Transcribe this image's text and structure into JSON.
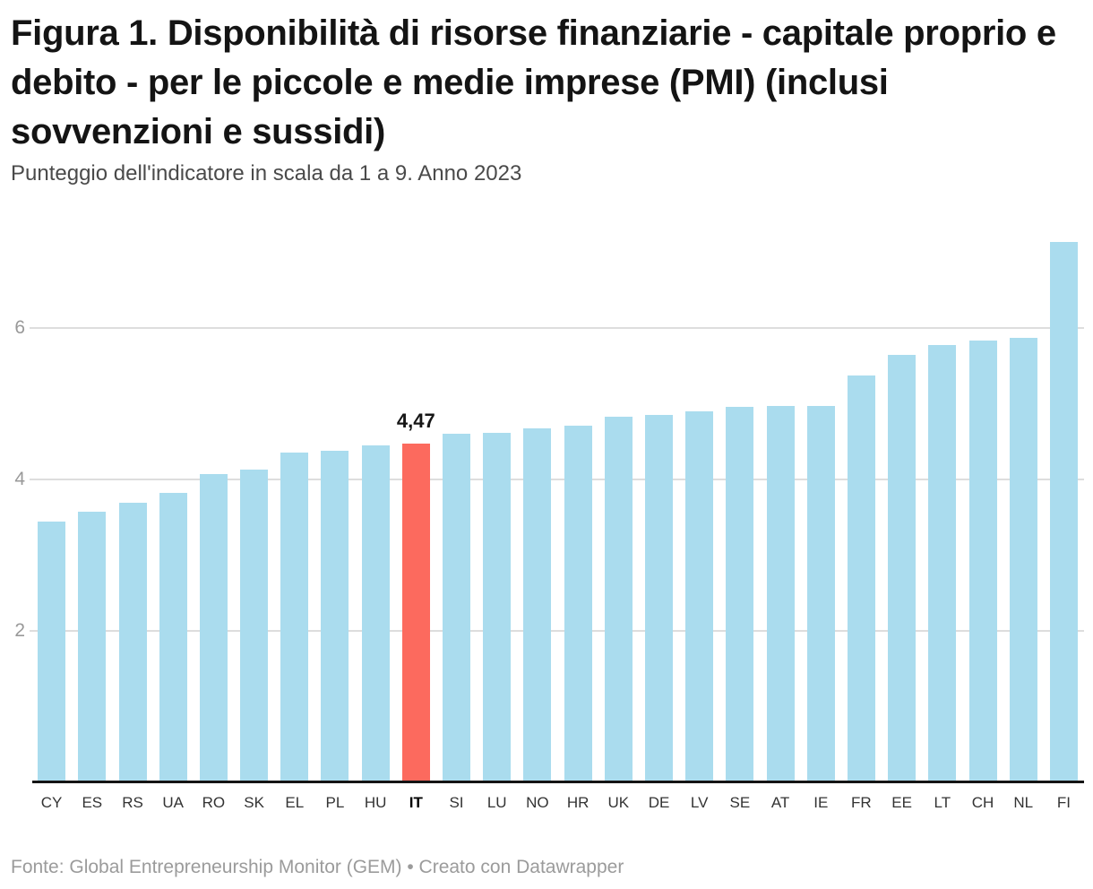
{
  "page": {
    "title": "Figura 1. Disponibilità di risorse finanziarie - capitale proprio e debito - per le piccole e medie imprese (PMI) (inclusi sovvenzioni e sussidi)",
    "subtitle": "Punteggio dell'indicatore in scala da 1 a 9. Anno 2023",
    "footer": "Fonte: Global Entrepreneurship Monitor (GEM) • Creato con Datawrapper"
  },
  "colors": {
    "bar": "#aadcee",
    "highlight_bar": "#fc6a5e",
    "grid": "#dddddd",
    "axis": "#141414",
    "y_tick_label": "#999999",
    "x_label": "#333333",
    "x_label_highlight": "#000000",
    "title": "#141414",
    "subtitle": "#4a4a4a",
    "footer": "#9b9b9b"
  },
  "chart_data": {
    "type": "bar",
    "title": "Figura 1. Disponibilità di risorse finanziarie - capitale proprio e debito - per le piccole e medie imprese (PMI) (inclusi sovvenzioni e sussidi)",
    "subtitle": "Punteggio dell'indicatore in scala da 1 a 9. Anno 2023",
    "source": "Global Entrepreneurship Monitor (GEM)",
    "categories": [
      "CY",
      "ES",
      "RS",
      "UA",
      "RO",
      "SK",
      "EL",
      "PL",
      "HU",
      "IT",
      "SI",
      "LU",
      "NO",
      "HR",
      "UK",
      "DE",
      "LV",
      "SE",
      "AT",
      "IE",
      "FR",
      "EE",
      "LT",
      "CH",
      "NL",
      "FI"
    ],
    "values": [
      3.45,
      3.58,
      3.7,
      3.83,
      4.07,
      4.13,
      4.36,
      4.38,
      4.45,
      4.47,
      4.6,
      4.62,
      4.67,
      4.71,
      4.83,
      4.85,
      4.9,
      4.96,
      4.97,
      4.97,
      5.37,
      5.64,
      5.78,
      5.83,
      5.87,
      7.13
    ],
    "highlight_category": "IT",
    "highlight_value_label": "4,47",
    "xlabel": "",
    "ylabel": "",
    "yticks": [
      2,
      4,
      6
    ],
    "ylim": [
      0,
      7.3
    ],
    "grid": "horizontal",
    "legend": "none"
  }
}
